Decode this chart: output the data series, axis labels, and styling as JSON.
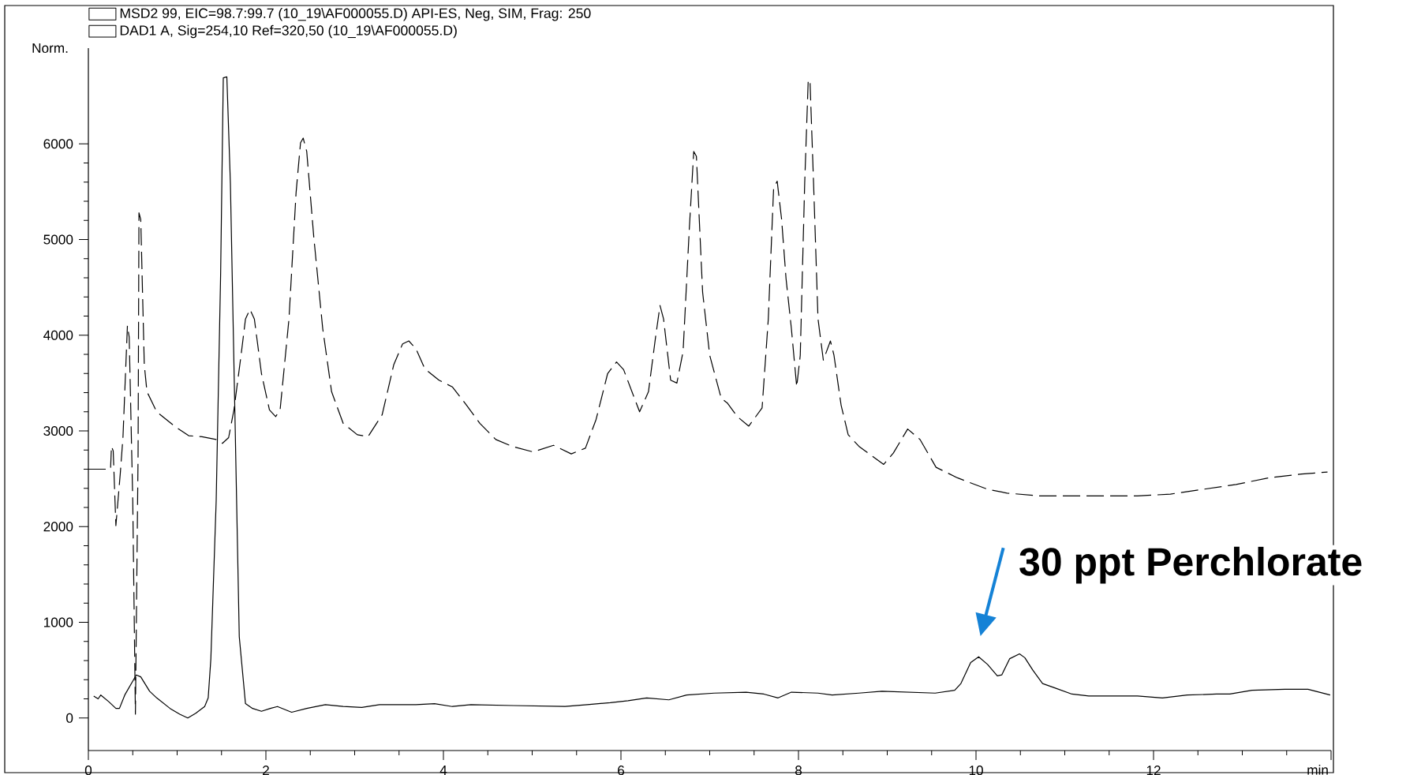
{
  "chart_data": {
    "type": "line",
    "xlabel": "min",
    "ylabel": "Norm.",
    "xlim": [
      0,
      14
    ],
    "ylim": [
      -340,
      7000
    ],
    "xticks": [
      0,
      2,
      4,
      6,
      8,
      10,
      12,
      {
        "value": 14,
        "label": null
      }
    ],
    "yticks": [
      0,
      1000,
      2000,
      3000,
      4000,
      5000,
      6000
    ],
    "legend": "top left",
    "annotations": [
      {
        "text": "30 ppt Perchlorate",
        "x": 10.05,
        "y": 640
      }
    ],
    "series": [
      {
        "name": "MSD2 99, EIC=98.7:99.7 (10_19\\AF000055.D)    API-ES, Neg, SIM, Frag: 250",
        "color": "#000000",
        "line_style": "dashed",
        "x": [
          0,
          0.25,
          0.26,
          0.28,
          0.31,
          0.36,
          0.39,
          0.44,
          0.46,
          0.5,
          0.53,
          0.56,
          0.57,
          0.59,
          0.63,
          0.66,
          0.77,
          0.97,
          1.13,
          1.28,
          1.44,
          1.51,
          1.58,
          1.64,
          1.72,
          1.77,
          1.82,
          1.87,
          1.95,
          2.04,
          2.11,
          2.16,
          2.26,
          2.34,
          2.39,
          2.42,
          2.46,
          2.54,
          2.64,
          2.74,
          2.87,
          3.03,
          3.15,
          3.31,
          3.44,
          3.54,
          3.61,
          3.69,
          3.79,
          3.95,
          4.1,
          4.26,
          4.41,
          4.59,
          4.77,
          5.01,
          5.24,
          5.44,
          5.6,
          5.72,
          5.85,
          5.95,
          6.03,
          6.21,
          6.31,
          6.39,
          6.44,
          6.48,
          6.56,
          6.63,
          6.7,
          6.77,
          6.82,
          6.85,
          6.92,
          7.0,
          7.13,
          7.2,
          7.31,
          7.44,
          7.59,
          7.66,
          7.72,
          7.76,
          7.81,
          7.86,
          7.92,
          7.98,
          8.02,
          8.07,
          8.11,
          8.13,
          8.17,
          8.22,
          8.28,
          8.36,
          8.4,
          8.48,
          8.56,
          8.68,
          8.81,
          8.96,
          9.07,
          9.23,
          9.37,
          9.55,
          9.79,
          10.13,
          10.35,
          10.72,
          11.08,
          11.45,
          11.82,
          12.19,
          12.56,
          12.93,
          13.3,
          13.67,
          13.96
        ],
        "values": [
          2600,
          2600,
          2840,
          2790,
          2010,
          2560,
          2940,
          4100,
          3980,
          2270,
          40,
          2750,
          5280,
          5210,
          3690,
          3410,
          3200,
          3050,
          2950,
          2940,
          2910,
          2870,
          2930,
          3220,
          3790,
          4170,
          4270,
          4170,
          3600,
          3220,
          3150,
          3220,
          4170,
          5490,
          6010,
          6060,
          5920,
          5020,
          4070,
          3410,
          3080,
          2960,
          2940,
          3170,
          3690,
          3910,
          3940,
          3860,
          3650,
          3530,
          3460,
          3270,
          3080,
          2910,
          2840,
          2780,
          2850,
          2760,
          2820,
          3120,
          3600,
          3720,
          3640,
          3200,
          3410,
          3980,
          4310,
          4170,
          3530,
          3500,
          3830,
          5110,
          5920,
          5870,
          4450,
          3790,
          3340,
          3290,
          3150,
          3050,
          3240,
          4170,
          5540,
          5610,
          5210,
          4590,
          4070,
          3460,
          3790,
          5590,
          6670,
          6650,
          5590,
          4170,
          3740,
          3940,
          3790,
          3270,
          2960,
          2840,
          2750,
          2650,
          2770,
          3020,
          2910,
          2620,
          2510,
          2390,
          2350,
          2320,
          2320,
          2320,
          2320,
          2340,
          2390,
          2440,
          2510,
          2550,
          2570
        ]
      },
      {
        "name": "DAD1 A, Sig=254,10 Ref=320,50 (10_19\\AF000055.D)",
        "color": "#000000",
        "line_style": "solid",
        "x": [
          0.06,
          0.11,
          0.14,
          0.23,
          0.31,
          0.35,
          0.41,
          0.54,
          0.59,
          0.69,
          0.77,
          0.92,
          1.03,
          1.12,
          1.21,
          1.31,
          1.35,
          1.38,
          1.44,
          1.49,
          1.52,
          1.56,
          1.6,
          1.65,
          1.7,
          1.77,
          1.85,
          1.95,
          2.05,
          2.13,
          2.21,
          2.29,
          2.46,
          2.67,
          2.87,
          3.08,
          3.28,
          3.69,
          3.9,
          4.1,
          4.31,
          4.79,
          5.37,
          5.62,
          5.88,
          6.08,
          6.29,
          6.54,
          6.74,
          7.05,
          7.41,
          7.61,
          7.77,
          7.92,
          8.22,
          8.38,
          8.68,
          8.94,
          9.24,
          9.54,
          9.76,
          9.83,
          9.94,
          10.03,
          10.13,
          10.24,
          10.29,
          10.38,
          10.49,
          10.55,
          10.64,
          10.75,
          10.9,
          11.08,
          11.27,
          11.53,
          11.82,
          12.1,
          12.38,
          12.71,
          12.86,
          13.11,
          13.48,
          13.74,
          13.99
        ],
        "values": [
          230,
          200,
          240,
          170,
          100,
          100,
          240,
          450,
          430,
          280,
          210,
          100,
          40,
          0,
          50,
          120,
          210,
          620,
          2270,
          4640,
          6690,
          6700,
          5590,
          3220,
          850,
          150,
          100,
          70,
          100,
          120,
          90,
          60,
          100,
          140,
          120,
          110,
          140,
          140,
          150,
          120,
          140,
          130,
          120,
          140,
          160,
          180,
          210,
          190,
          240,
          260,
          270,
          250,
          210,
          270,
          260,
          240,
          260,
          280,
          270,
          260,
          290,
          360,
          580,
          640,
          560,
          440,
          450,
          620,
          670,
          630,
          500,
          360,
          310,
          250,
          230,
          230,
          230,
          210,
          240,
          250,
          250,
          290,
          300,
          300,
          240
        ]
      }
    ]
  }
}
